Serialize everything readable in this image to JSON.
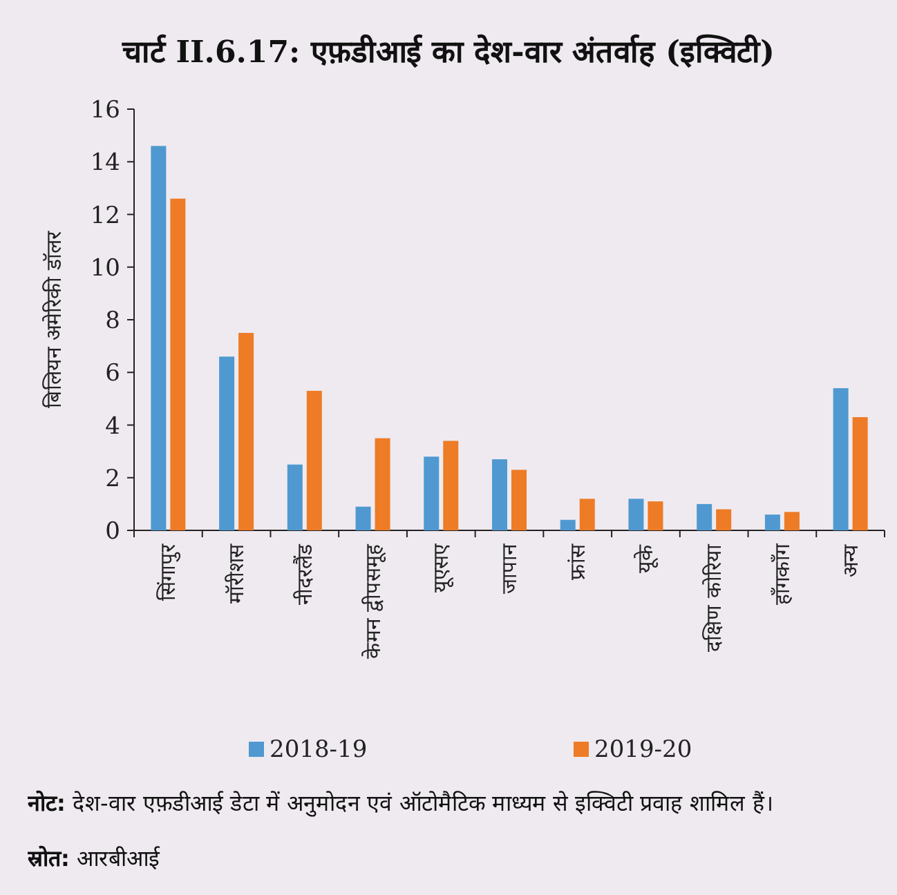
{
  "chart_data": {
    "type": "bar",
    "title": "चार्ट II.6.17: एफ़डीआई का देश-वार अंतर्वाह (इक्विटी)",
    "ylabel": "बिलियन अमेरिकी डॉलर",
    "categories": [
      "सिंगापुर",
      "मॉरीशस",
      "नीदरलैंड",
      "केमन द्वीपसमूह",
      "यूएसए",
      "जापान",
      "फ्रांस",
      "यूके",
      "दक्षिण कोरिया",
      "हॉंगकॉंग",
      "अन्य"
    ],
    "series": [
      {
        "name": "2018-19",
        "color": "#4f99d0",
        "values": [
          14.6,
          6.6,
          2.5,
          0.9,
          2.8,
          2.7,
          0.4,
          1.2,
          1.0,
          0.6,
          5.4
        ]
      },
      {
        "name": "2019-20",
        "color": "#ee7b25",
        "values": [
          12.6,
          7.5,
          5.3,
          3.5,
          3.4,
          2.3,
          1.2,
          1.1,
          0.8,
          0.7,
          4.3
        ]
      }
    ],
    "ylim": [
      0,
      16
    ],
    "yticks": [
      0,
      2,
      4,
      6,
      8,
      10,
      12,
      14,
      16
    ],
    "grid": false,
    "legend": "bottom",
    "annotations": [
      "नोट: देश-वार एफ़डीआई डेटा में अनुमोदन एवं ऑटोमैटिक माध्यम से इक्विटी प्रवाह शामिल हैं।",
      "स्रोत: आरबीआई"
    ]
  }
}
